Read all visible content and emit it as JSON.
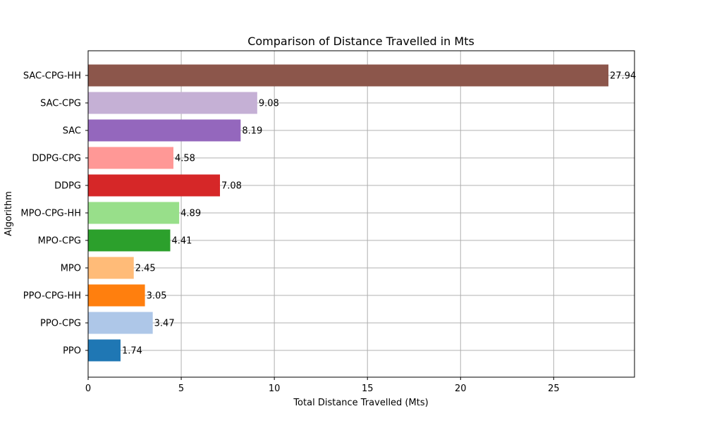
{
  "chart_data": {
    "type": "bar",
    "orientation": "horizontal",
    "title": "Comparison of Distance Travelled in Mts",
    "xlabel": "Total Distance Travelled (Mts)",
    "ylabel": "Algorithm",
    "xlim": [
      0,
      29.34
    ],
    "xticks": [
      0,
      5,
      10,
      15,
      20,
      25
    ],
    "grid": true,
    "categories": [
      "PPO",
      "PPO-CPG",
      "PPO-CPG-HH",
      "MPO",
      "MPO-CPG",
      "MPO-CPG-HH",
      "DDPG",
      "DDPG-CPG",
      "SAC",
      "SAC-CPG",
      "SAC-CPG-HH"
    ],
    "values": [
      1.74,
      3.47,
      3.05,
      2.45,
      4.41,
      4.89,
      7.08,
      4.58,
      8.19,
      9.08,
      27.94
    ],
    "value_labels": [
      "1.74",
      "3.47",
      "3.05",
      "2.45",
      "4.41",
      "4.89",
      "7.08",
      "4.58",
      "8.19",
      "9.08",
      "27.94"
    ],
    "colors": [
      "#1f77b4",
      "#aec7e8",
      "#ff7f0e",
      "#ffbb78",
      "#2ca02c",
      "#98df8a",
      "#d62728",
      "#ff9896",
      "#9467bd",
      "#c5b0d5",
      "#8c564b"
    ]
  }
}
